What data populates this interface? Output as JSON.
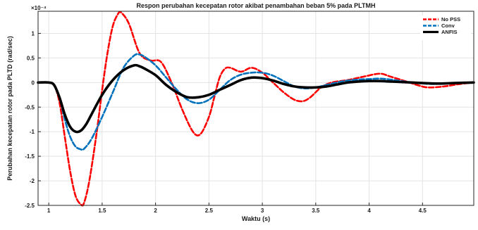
{
  "chart_data": {
    "type": "line",
    "title": "Respon perubahan kecepatan rotor akibat penambahan beban 5% pada PLTMH",
    "xlabel": "Waktu (s)",
    "ylabel": "Perubahan kecepatan rotor pada PLTD (rad/sec)",
    "y_multiplier": "×10⁻⁴",
    "xlim": [
      0.9,
      4.98
    ],
    "ylim": [
      -2.5,
      1.45
    ],
    "x_ticks": [
      1,
      1.5,
      2,
      2.5,
      3,
      3.5,
      4,
      4.5
    ],
    "x_tick_labels": [
      "1",
      "1.5",
      "2",
      "2.5",
      "3",
      "3.5",
      "4",
      "4.5"
    ],
    "y_ticks": [
      1,
      0.5,
      0,
      -0.5,
      -1,
      -1.5,
      -2,
      -2.5
    ],
    "y_tick_labels": [
      "1",
      "0.5",
      "0",
      "-0.5",
      "-1",
      "-1.5",
      "-2",
      "-2.5"
    ],
    "grid": true,
    "legend_position": "top-right",
    "series": [
      {
        "name": "No PSS",
        "color": "#ff0000",
        "dash": "dashed",
        "x": [
          0.9,
          1.0,
          1.05,
          1.1,
          1.15,
          1.2,
          1.25,
          1.3,
          1.33,
          1.38,
          1.45,
          1.5,
          1.55,
          1.6,
          1.65,
          1.68,
          1.75,
          1.85,
          1.95,
          2.05,
          2.15,
          2.25,
          2.35,
          2.42,
          2.5,
          2.55,
          2.6,
          2.65,
          2.7,
          2.8,
          2.9,
          3.0,
          3.1,
          3.2,
          3.3,
          3.38,
          3.45,
          3.55,
          3.65,
          3.8,
          3.95,
          4.1,
          4.2,
          4.35,
          4.45,
          4.55,
          4.7,
          4.85,
          4.98
        ],
        "y": [
          0,
          0,
          -0.05,
          -0.4,
          -1.1,
          -1.8,
          -2.3,
          -2.48,
          -2.45,
          -2.0,
          -1.0,
          -0.15,
          0.6,
          1.15,
          1.4,
          1.42,
          1.2,
          0.6,
          0.45,
          0.42,
          0.0,
          -0.55,
          -1.0,
          -1.05,
          -0.7,
          -0.3,
          0.1,
          0.28,
          0.3,
          0.22,
          0.3,
          0.2,
          0.0,
          -0.2,
          -0.35,
          -0.38,
          -0.3,
          -0.1,
          0.0,
          0.05,
          0.12,
          0.18,
          0.12,
          0.02,
          -0.05,
          -0.1,
          -0.08,
          -0.03,
          0.0
        ]
      },
      {
        "name": "Conv",
        "color": "#0072bd",
        "dash": "dashed",
        "x": [
          0.9,
          1.0,
          1.05,
          1.1,
          1.15,
          1.2,
          1.25,
          1.3,
          1.33,
          1.4,
          1.5,
          1.6,
          1.7,
          1.8,
          1.85,
          1.9,
          2.0,
          2.1,
          2.2,
          2.3,
          2.4,
          2.5,
          2.6,
          2.7,
          2.8,
          2.9,
          3.0,
          3.1,
          3.2,
          3.3,
          3.4,
          3.5,
          3.6,
          3.7,
          3.8,
          3.9,
          4.0,
          4.1,
          4.2,
          4.3,
          4.4,
          4.5,
          4.6,
          4.7,
          4.8,
          4.98
        ],
        "y": [
          0,
          0,
          -0.05,
          -0.3,
          -0.75,
          -1.1,
          -1.3,
          -1.36,
          -1.35,
          -1.15,
          -0.7,
          -0.2,
          0.3,
          0.55,
          0.57,
          0.52,
          0.35,
          0.1,
          -0.15,
          -0.35,
          -0.42,
          -0.35,
          -0.15,
          0.05,
          0.16,
          0.2,
          0.2,
          0.14,
          0.03,
          -0.08,
          -0.12,
          -0.1,
          -0.05,
          0.0,
          0.04,
          0.06,
          0.07,
          0.08,
          0.06,
          0.03,
          0.0,
          -0.02,
          -0.03,
          -0.02,
          -0.01,
          0.0
        ]
      },
      {
        "name": "ANFIS",
        "color": "#000000",
        "dash": "solid",
        "x": [
          0.9,
          1.0,
          1.05,
          1.1,
          1.15,
          1.2,
          1.25,
          1.3,
          1.35,
          1.4,
          1.5,
          1.6,
          1.7,
          1.8,
          1.85,
          1.9,
          2.0,
          2.1,
          2.2,
          2.3,
          2.4,
          2.5,
          2.6,
          2.7,
          2.8,
          2.9,
          3.0,
          3.1,
          3.2,
          3.3,
          3.4,
          3.5,
          3.6,
          3.7,
          3.8,
          3.9,
          4.0,
          4.1,
          4.2,
          4.3,
          4.4,
          4.5,
          4.6,
          4.7,
          4.8,
          4.98
        ],
        "y": [
          0,
          0,
          -0.05,
          -0.3,
          -0.65,
          -0.9,
          -1.0,
          -0.98,
          -0.85,
          -0.65,
          -0.25,
          0.05,
          0.25,
          0.35,
          0.33,
          0.28,
          0.15,
          -0.05,
          -0.2,
          -0.3,
          -0.3,
          -0.25,
          -0.15,
          -0.05,
          0.05,
          0.1,
          0.09,
          0.04,
          -0.03,
          -0.08,
          -0.1,
          -0.1,
          -0.08,
          -0.04,
          0.0,
          0.02,
          0.03,
          0.03,
          0.02,
          0.01,
          0.0,
          -0.01,
          -0.02,
          -0.02,
          -0.01,
          0.0
        ]
      }
    ]
  }
}
